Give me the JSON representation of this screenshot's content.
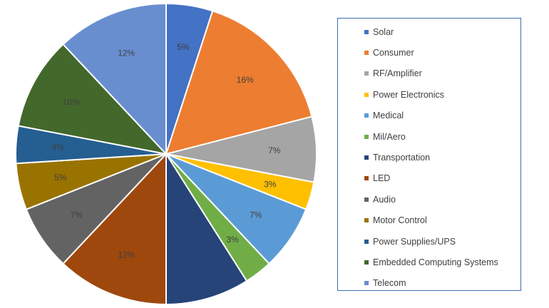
{
  "chart_data": {
    "type": "pie",
    "categories": [
      "Solar",
      "Consumer",
      "RF/Amplifier",
      "Power Electronics",
      "Medical",
      "Mil/Aero",
      "Transportation",
      "LED",
      "Audio",
      "Motor Control",
      "Power Supplies/UPS",
      "Embedded Computing Systems",
      "Telecom"
    ],
    "values": [
      5,
      16,
      7,
      3,
      7,
      3,
      9,
      12,
      7,
      5,
      4,
      10,
      12
    ],
    "labels": [
      "5%",
      "16%",
      "7%",
      "3%",
      "7%",
      "3%",
      "",
      "12%",
      "7%",
      "5%",
      "4%",
      "10%",
      "12%"
    ],
    "colors": [
      "#4472c4",
      "#ed7d31",
      "#a5a5a5",
      "#ffc000",
      "#5b9bd5",
      "#70ad47",
      "#264478",
      "#9e480e",
      "#636363",
      "#997300",
      "#255e91",
      "#43682b",
      "#698ed0"
    ],
    "legend_position": "right",
    "start_angle": "top, clockwise"
  }
}
